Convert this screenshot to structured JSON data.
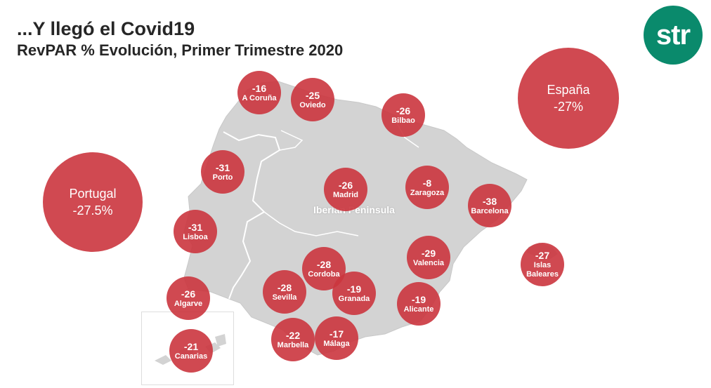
{
  "header": {
    "title": "...Y llegó el Covid19",
    "subtitle": "RevPAR % Evolución, Primer Trimestre 2020"
  },
  "logo": {
    "text": "str",
    "color": "#0a8a6c"
  },
  "map": {
    "label": "Iberian Peninsula",
    "land_color": "#d3d3d3",
    "border_color": "#ffffff"
  },
  "bubble_color": "#cb353e",
  "totals": {
    "portugal": {
      "name": "Portugal",
      "value": "-27.5%"
    },
    "espana": {
      "name": "España",
      "value": "-27%"
    }
  },
  "cities": {
    "coruna": {
      "value": "-16",
      "name": "A Coruña"
    },
    "oviedo": {
      "value": "-25",
      "name": "Oviedo"
    },
    "bilbao": {
      "value": "-26",
      "name": "Bilbao"
    },
    "porto": {
      "value": "-31",
      "name": "Porto"
    },
    "madrid": {
      "value": "-26",
      "name": "Madrid"
    },
    "zaragoza": {
      "value": "-8",
      "name": "Zaragoza"
    },
    "barcelona": {
      "value": "-38",
      "name": "Barcelona"
    },
    "lisboa": {
      "value": "-31",
      "name": "Lisboa"
    },
    "valencia": {
      "value": "-29",
      "name": "Valencia"
    },
    "baleares": {
      "value": "-27",
      "name": "Islas Baleares"
    },
    "cordoba": {
      "value": "-28",
      "name": "Cordoba"
    },
    "sevilla": {
      "value": "-28",
      "name": "Sevilla"
    },
    "granada": {
      "value": "-19",
      "name": "Granada"
    },
    "alicante": {
      "value": "-19",
      "name": "Alicante"
    },
    "algarve": {
      "value": "-26",
      "name": "Algarve"
    },
    "canarias": {
      "value": "-21",
      "name": "Canarias"
    },
    "marbella": {
      "value": "-22",
      "name": "Marbella"
    },
    "malaga": {
      "value": "-17",
      "name": "Málaga"
    }
  }
}
